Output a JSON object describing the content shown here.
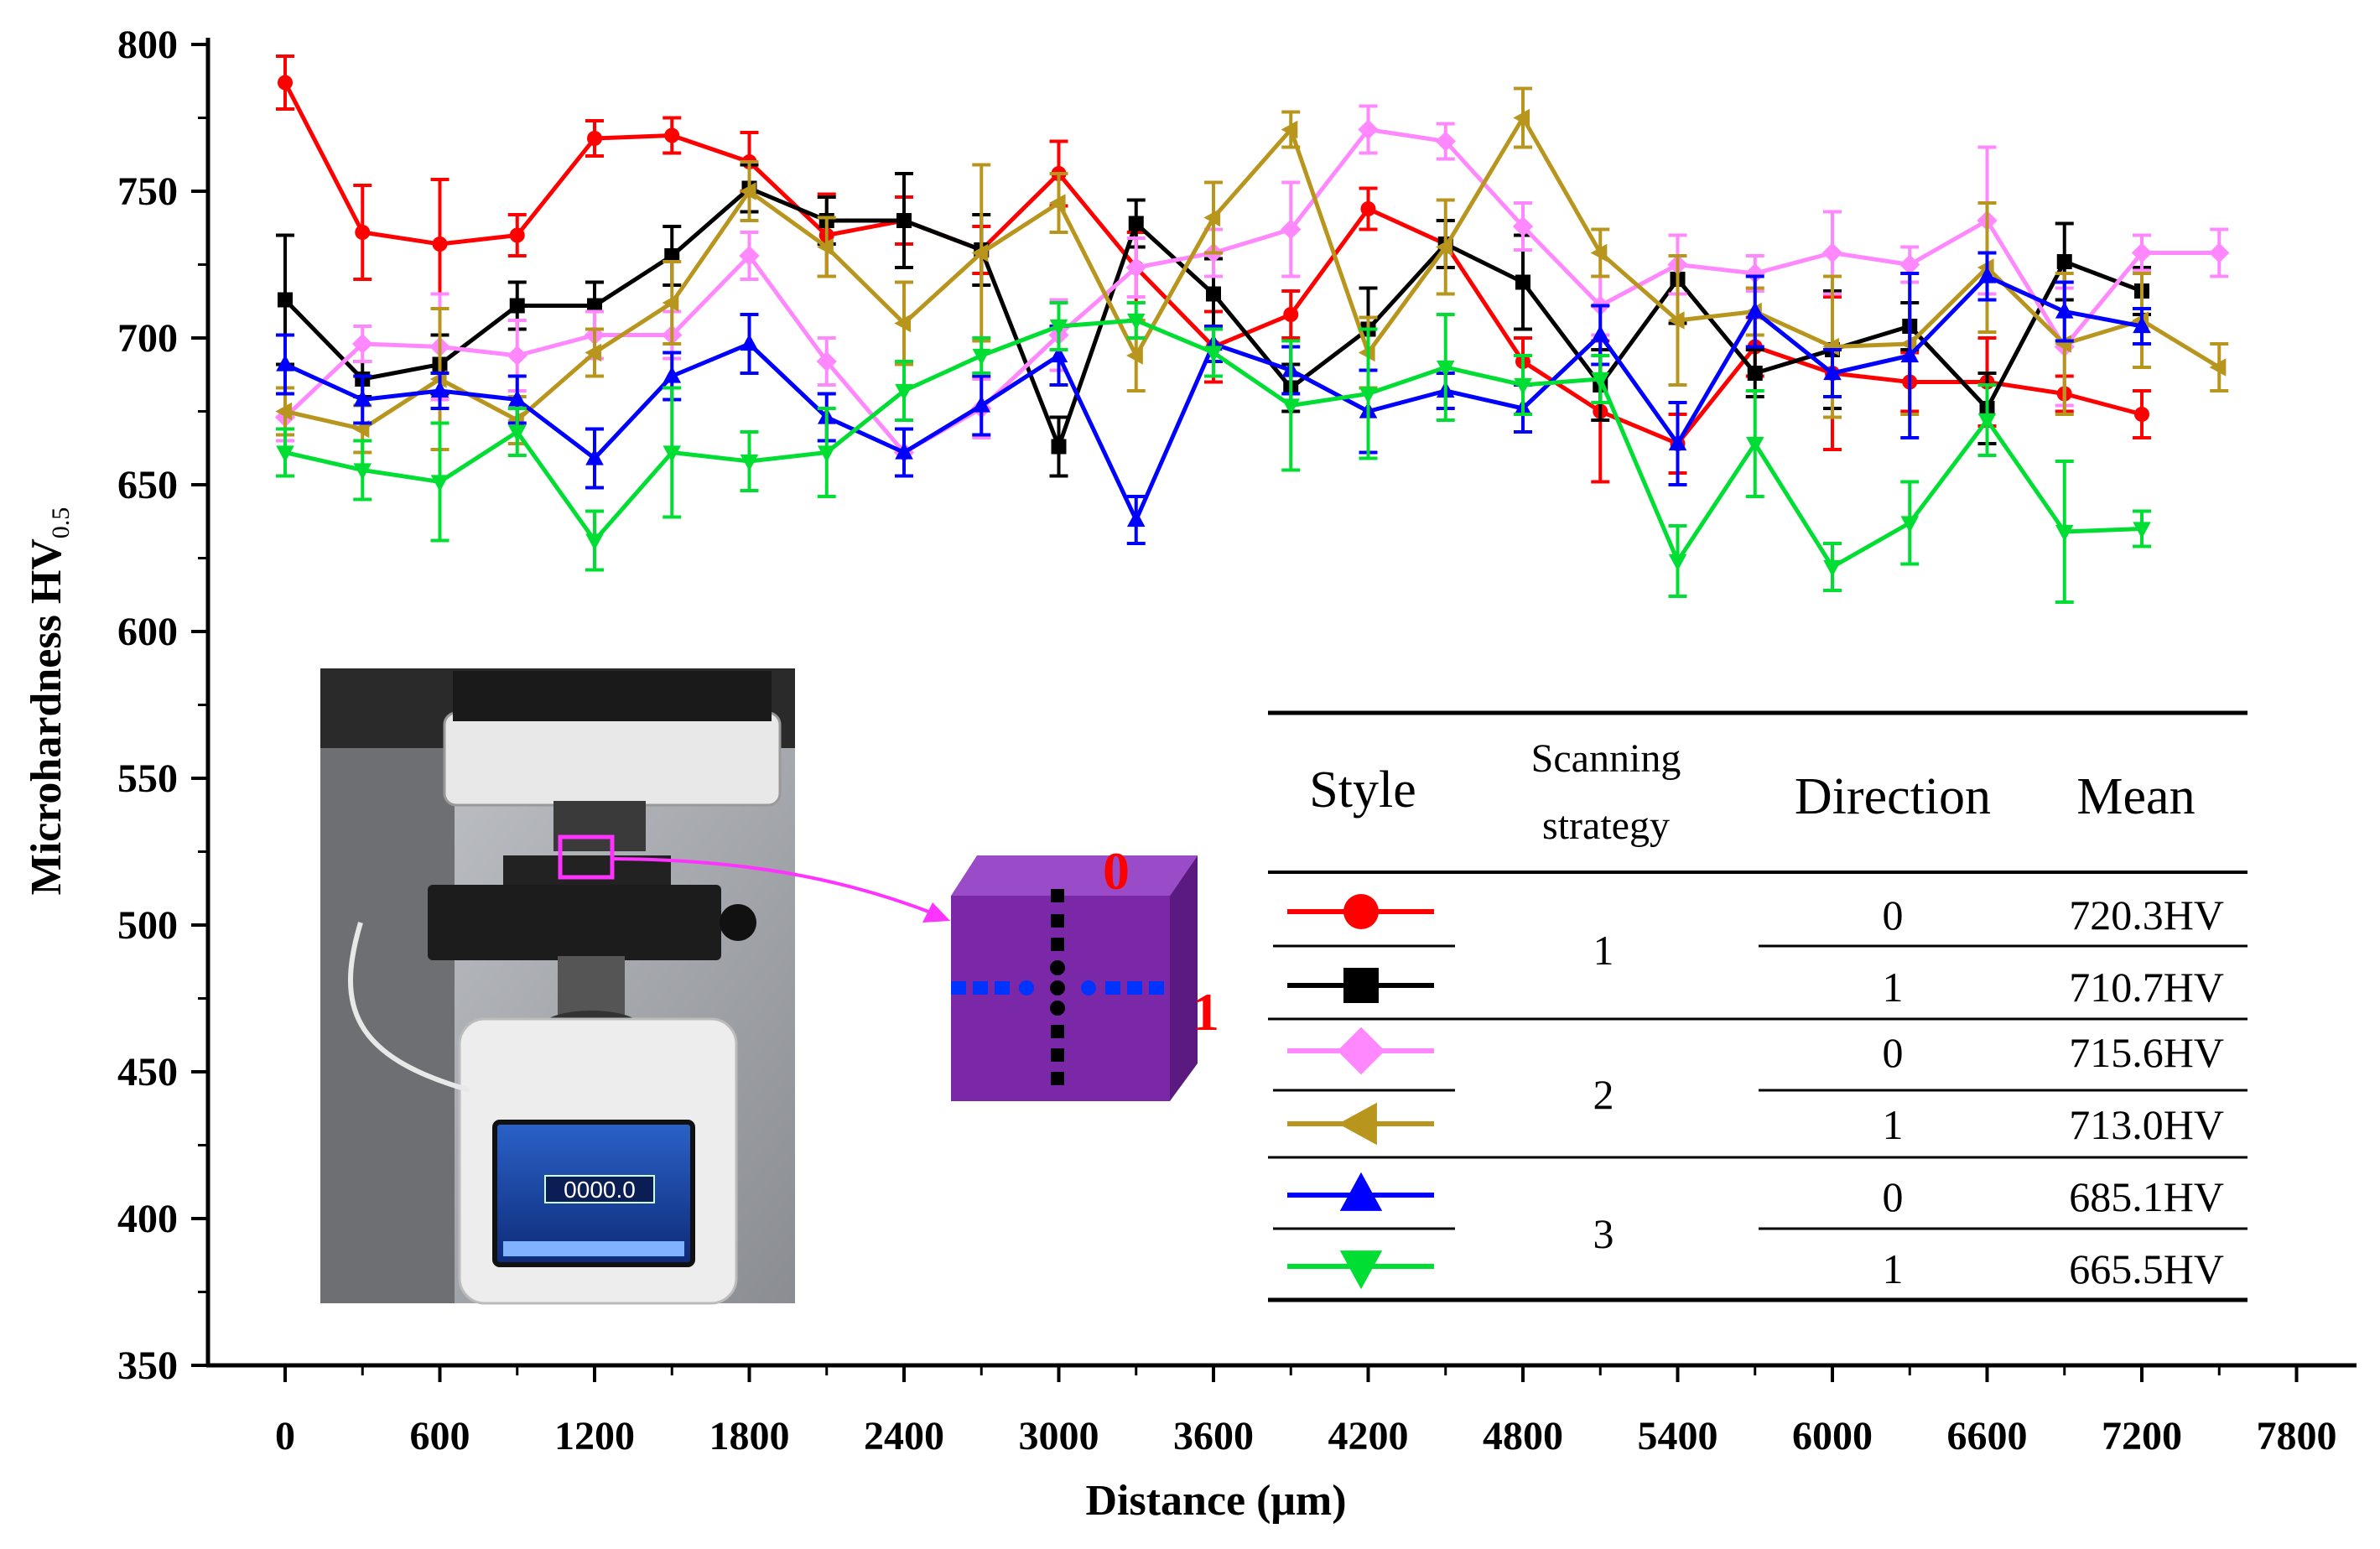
{
  "chart_data": {
    "type": "line",
    "title": "",
    "xlabel": "Distance (μm)",
    "ylabel": "Microhardness HV",
    "ylabel_sub": "0.5",
    "xlim": [
      -300,
      8100
    ],
    "ylim": [
      350,
      800
    ],
    "xticks": [
      0,
      600,
      1200,
      1800,
      2400,
      3000,
      3600,
      4200,
      4800,
      5400,
      6000,
      6600,
      7200,
      7800
    ],
    "yticks": [
      350,
      400,
      450,
      500,
      550,
      600,
      650,
      700,
      750,
      800
    ],
    "series": [
      {
        "name": "Style 1 / Direction 0",
        "color": "#ff0000",
        "marker": "circle",
        "x": [
          0,
          300,
          600,
          900,
          1200,
          1500,
          1800,
          2100,
          2400,
          2700,
          3000,
          3300,
          3600,
          3900,
          4200,
          4500,
          4800,
          5100,
          5400,
          5700,
          6000,
          6300,
          6600,
          6900,
          7200
        ],
        "y": [
          787,
          736,
          732,
          735,
          768,
          769,
          760,
          735,
          740,
          730,
          756,
          724,
          697,
          708,
          744,
          732,
          692,
          675,
          664,
          697,
          688,
          685,
          685,
          681,
          674
        ],
        "err": [
          9,
          16,
          22,
          7,
          6,
          6,
          10,
          14,
          8,
          8,
          11,
          12,
          12,
          8,
          7,
          8,
          8,
          24,
          10,
          10,
          26,
          10,
          15,
          6,
          8
        ]
      },
      {
        "name": "Style 1 / Direction 1",
        "color": "#000000",
        "marker": "square",
        "x": [
          0,
          300,
          600,
          900,
          1200,
          1500,
          1800,
          2100,
          2400,
          2700,
          3000,
          3300,
          3600,
          3900,
          4200,
          4500,
          4800,
          5100,
          5400,
          5700,
          6000,
          6300,
          6600,
          6900,
          7200
        ],
        "y": [
          713,
          686,
          691,
          711,
          711,
          728,
          751,
          740,
          740,
          730,
          663,
          739,
          715,
          683,
          703,
          732,
          719,
          684,
          720,
          688,
          696,
          704,
          676,
          726,
          716
        ],
        "err": [
          22,
          6,
          10,
          8,
          8,
          10,
          8,
          8,
          16,
          12,
          10,
          8,
          12,
          8,
          14,
          8,
          16,
          12,
          15,
          8,
          20,
          8,
          12,
          13,
          8
        ]
      },
      {
        "name": "Style 2 / Direction 0",
        "color": "#ff88ff",
        "marker": "diamond",
        "x": [
          0,
          300,
          600,
          900,
          1200,
          1500,
          1800,
          2100,
          2400,
          2700,
          3000,
          3300,
          3600,
          3900,
          4200,
          4500,
          4800,
          5100,
          5400,
          5700,
          6000,
          6300,
          6600,
          6900,
          7200,
          7500
        ],
        "y": [
          673,
          698,
          697,
          694,
          701,
          701,
          728,
          692,
          661,
          676,
          701,
          724,
          729,
          737,
          771,
          767,
          738,
          711,
          725,
          722,
          729,
          725,
          740,
          697,
          729,
          729
        ],
        "err": [
          8,
          6,
          18,
          12,
          8,
          8,
          8,
          8,
          8,
          10,
          12,
          10,
          8,
          16,
          8,
          6,
          8,
          10,
          10,
          6,
          14,
          6,
          25,
          20,
          6,
          8
        ]
      },
      {
        "name": "Style 2 / Direction 1",
        "color": "#b8961e",
        "marker": "triangle-left",
        "x": [
          0,
          300,
          600,
          900,
          1200,
          1500,
          1800,
          2100,
          2400,
          2700,
          3000,
          3300,
          3600,
          3900,
          4200,
          4500,
          4800,
          5100,
          5400,
          5700,
          6000,
          6300,
          6600,
          6900,
          7200,
          7500
        ],
        "y": [
          675,
          669,
          686,
          672,
          695,
          712,
          750,
          731,
          705,
          729,
          746,
          694,
          741,
          771,
          695,
          731,
          775,
          729,
          706,
          709,
          697,
          698,
          724,
          698,
          706,
          690
        ],
        "err": [
          8,
          8,
          24,
          8,
          8,
          14,
          10,
          10,
          14,
          30,
          10,
          12,
          12,
          6,
          12,
          16,
          10,
          8,
          22,
          8,
          24,
          24,
          22,
          24,
          16,
          8
        ]
      },
      {
        "name": "Style 3 / Direction 0",
        "color": "#0000ff",
        "marker": "triangle-up",
        "x": [
          0,
          300,
          600,
          900,
          1200,
          1500,
          1800,
          2100,
          2400,
          2700,
          3000,
          3300,
          3600,
          3900,
          4200,
          4500,
          4800,
          5100,
          5400,
          5700,
          6000,
          6300,
          6600,
          6900,
          7200
        ],
        "y": [
          691,
          679,
          682,
          679,
          659,
          687,
          698,
          673,
          661,
          677,
          694,
          638,
          698,
          689,
          675,
          682,
          676,
          701,
          664,
          709,
          688,
          694,
          721,
          709,
          704
        ],
        "err": [
          10,
          8,
          6,
          8,
          10,
          8,
          10,
          8,
          8,
          10,
          10,
          8,
          6,
          8,
          14,
          6,
          8,
          10,
          14,
          12,
          8,
          28,
          8,
          10,
          6
        ]
      },
      {
        "name": "Style 3 / Direction 1",
        "color": "#00dd33",
        "marker": "triangle-down",
        "x": [
          0,
          300,
          600,
          900,
          1200,
          1500,
          1800,
          2100,
          2400,
          2700,
          3000,
          3300,
          3600,
          3900,
          4200,
          4500,
          4800,
          5100,
          5400,
          5700,
          6000,
          6300,
          6600,
          6900,
          7200
        ],
        "y": [
          661,
          655,
          651,
          668,
          631,
          661,
          658,
          661,
          682,
          694,
          704,
          706,
          695,
          677,
          681,
          690,
          684,
          686,
          624,
          664,
          622,
          637,
          672,
          634,
          635
        ],
        "err": [
          8,
          10,
          20,
          8,
          10,
          22,
          10,
          15,
          10,
          6,
          8,
          6,
          8,
          22,
          22,
          18,
          10,
          8,
          12,
          18,
          8,
          14,
          12,
          24,
          6
        ]
      }
    ]
  },
  "table": {
    "headers": {
      "style": "Style",
      "strategy_line1": "Scanning",
      "strategy_line2": "strategy",
      "direction": "Direction",
      "mean": "Mean"
    },
    "strategies": [
      "1",
      "2",
      "3"
    ],
    "rows": [
      {
        "direction": "0",
        "mean": "720.3HV"
      },
      {
        "direction": "1",
        "mean": "710.7HV"
      },
      {
        "direction": "0",
        "mean": "715.6HV"
      },
      {
        "direction": "1",
        "mean": "713.0HV"
      },
      {
        "direction": "0",
        "mean": "685.1HV"
      },
      {
        "direction": "1",
        "mean": "665.5HV"
      }
    ]
  },
  "inset": {
    "device_display": "0000.0",
    "cube_label_top": "0",
    "cube_label_side": "1",
    "colors": {
      "cube_front": "#7a28a8",
      "cube_top": "#9a4cc8",
      "cube_side": "#5a1a80",
      "arrow": "#ff33ff",
      "label": "#ff0000",
      "dots_vertical": "#000000",
      "dots_horizontal": "#0033ff"
    }
  }
}
